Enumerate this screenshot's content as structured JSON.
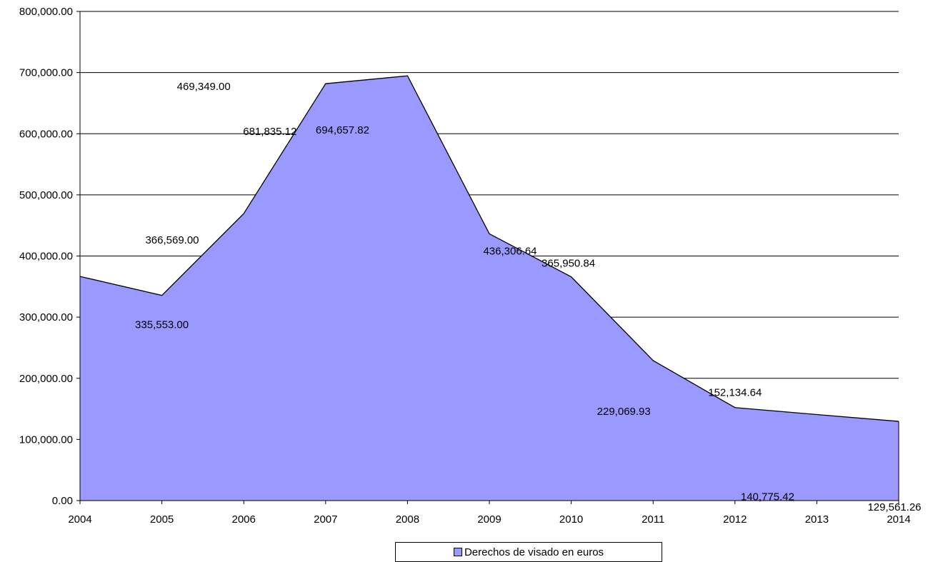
{
  "chart_data": {
    "type": "area",
    "x": [
      "2004",
      "2005",
      "2006",
      "2007",
      "2008",
      "2009",
      "2010",
      "2011",
      "2012",
      "2013",
      "2014"
    ],
    "series": [
      {
        "name": "Derechos de visado en euros",
        "values": [
          366569.0,
          335553.0,
          469349.0,
          681835.12,
          694657.82,
          436306.64,
          365950.84,
          229069.93,
          152134.64,
          140775.42,
          129561.26
        ],
        "data_labels": [
          "366,569.00",
          "335,553.00",
          "469,349.00",
          "681,835.12",
          "694,657.82",
          "436,306.64",
          "365,950.84",
          "229,069.93",
          "152,134.64",
          "140,775.42",
          "129,561.26"
        ],
        "color": "#9999ff"
      }
    ],
    "ylim": [
      0,
      800000
    ],
    "yticks": [
      "0.00",
      "100,000.00",
      "200,000.00",
      "300,000.00",
      "400,000.00",
      "500,000.00",
      "600,000.00",
      "700,000.00",
      "800,000.00"
    ],
    "title": "",
    "xlabel": "",
    "ylabel": "",
    "grid": "horizontal",
    "legend_position": "bottom"
  }
}
